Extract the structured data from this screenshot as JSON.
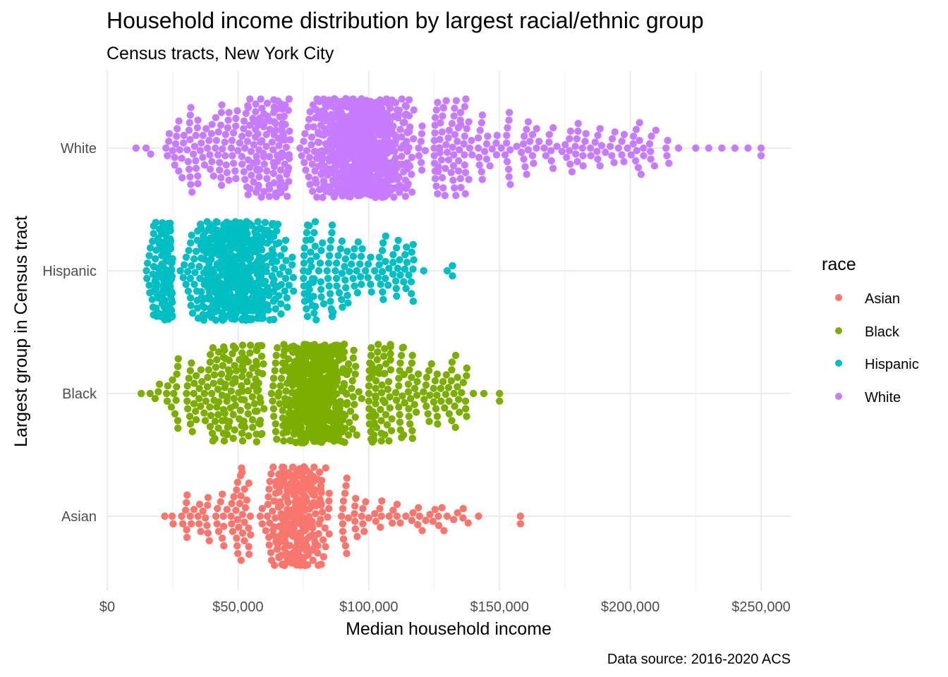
{
  "chart_data": {
    "type": "scatter",
    "subtype": "beeswarm",
    "title": "Household income distribution by largest racial/ethnic group",
    "subtitle": "Census tracts, New York City",
    "xlabel": "Median household income",
    "ylabel": "Largest group in Census tract",
    "caption": "Data source: 2016-2020 ACS",
    "xlim": [
      0,
      262000
    ],
    "x_ticks": [
      0,
      50000,
      100000,
      150000,
      200000,
      250000
    ],
    "x_tick_labels": [
      "$0",
      "$50,000",
      "$100,000",
      "$150,000",
      "$200,000",
      "$250,000"
    ],
    "categories": [
      "Asian",
      "Black",
      "Hispanic",
      "White"
    ],
    "grid": true,
    "legend": {
      "title": "race",
      "position": "right",
      "entries": [
        "Asian",
        "Black",
        "Hispanic",
        "White"
      ]
    },
    "series": [
      {
        "name": "Asian",
        "color": "#F8766D",
        "approx_count": 400,
        "min": 22000,
        "max": 158000,
        "median": 75000,
        "mode_region": [
          55000,
          90000
        ],
        "outliers": [
          128000,
          130000,
          136000,
          138000,
          142000,
          158000
        ]
      },
      {
        "name": "Black",
        "color": "#7CAE00",
        "approx_count": 950,
        "min": 13000,
        "max": 150000,
        "median": 78000,
        "mode_region": [
          60000,
          100000
        ],
        "outliers": [
          137000,
          140000,
          144000,
          150000
        ]
      },
      {
        "name": "Hispanic",
        "color": "#00BFC4",
        "approx_count": 850,
        "min": 15000,
        "max": 132000,
        "median": 57000,
        "mode_region": [
          25000,
          75000
        ],
        "outliers": [
          117000,
          121000,
          130000,
          132000
        ]
      },
      {
        "name": "White",
        "color": "#C77CFF",
        "approx_count": 1250,
        "min": 11000,
        "max": 250000,
        "median": 98000,
        "mode_region": [
          70000,
          125000
        ],
        "outliers": [
          225000,
          230000,
          235000,
          240000,
          245000,
          250000
        ]
      }
    ]
  }
}
